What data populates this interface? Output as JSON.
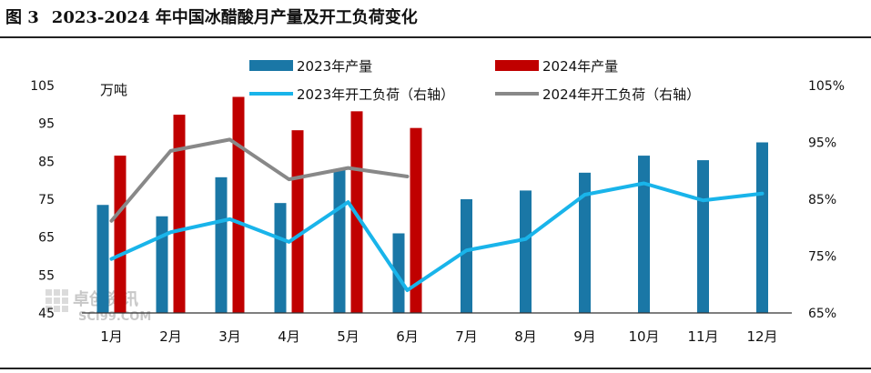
{
  "figure": {
    "number": "图 3",
    "title": "2023-2024 年中国冰醋酸月产量及开工负荷变化"
  },
  "colors": {
    "bar2023": "#1a77a6",
    "bar2024": "#c00000",
    "line2023": "#19b4ea",
    "line2024": "#888888"
  },
  "watermark": {
    "text": "卓创资讯",
    "subtext": "SCI99.COM"
  },
  "chart_data": {
    "type": "bar",
    "categories": [
      "1月",
      "2月",
      "3月",
      "4月",
      "5月",
      "6月",
      "7月",
      "8月",
      "9月",
      "10月",
      "11月",
      "12月"
    ],
    "ylabel": "万吨",
    "ylim": [
      45,
      105
    ],
    "yticks": [
      45,
      55,
      65,
      75,
      85,
      95,
      105
    ],
    "y2lim": [
      65,
      105
    ],
    "y2ticks": [
      "65%",
      "75%",
      "85%",
      "95%",
      "105%"
    ],
    "legend_position": "top",
    "series": [
      {
        "name": "2023年产量",
        "kind": "bar",
        "axis": "left",
        "values": [
          73.5,
          70.5,
          80.8,
          74,
          83,
          66,
          75,
          77.3,
          82,
          86.5,
          85.3,
          90
        ]
      },
      {
        "name": "2024年产量",
        "kind": "bar",
        "axis": "left",
        "values": [
          86.5,
          97.3,
          102,
          93.2,
          98.2,
          93.8,
          null,
          null,
          null,
          null,
          null,
          null
        ]
      },
      {
        "name": "2023年开工负荷（右轴）",
        "kind": "line",
        "axis": "right",
        "values": [
          74.5,
          79.2,
          81.5,
          77.5,
          84.5,
          69,
          76,
          78,
          85.8,
          87.8,
          84.8,
          86
        ]
      },
      {
        "name": "2024年开工负荷（右轴）",
        "kind": "line",
        "axis": "right",
        "values": [
          81.2,
          93.5,
          95.5,
          88.5,
          90.5,
          89,
          null,
          null,
          null,
          null,
          null,
          null
        ]
      }
    ]
  }
}
